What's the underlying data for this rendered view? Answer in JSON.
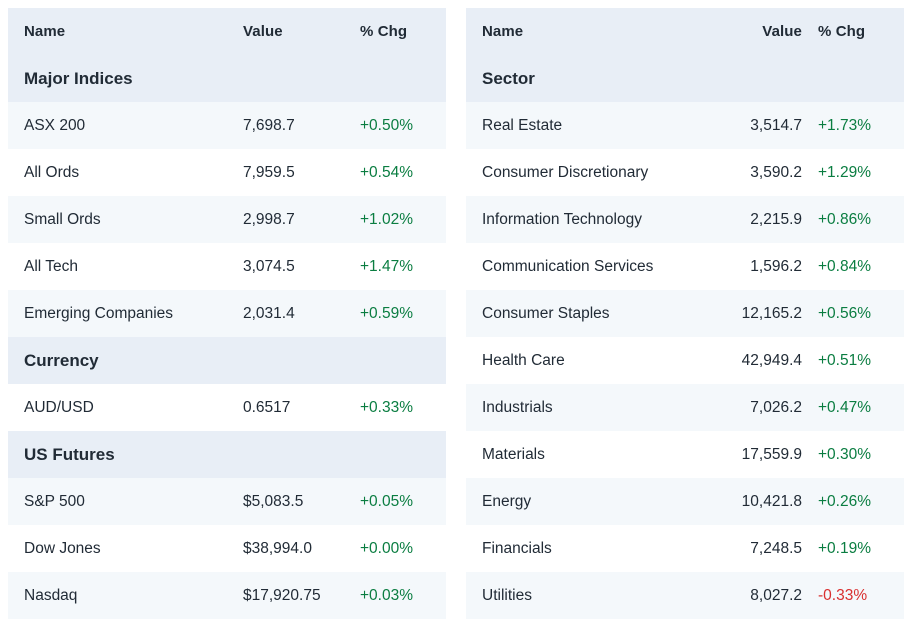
{
  "columns": {
    "name": "Name",
    "value": "Value",
    "chg": "% Chg"
  },
  "colors": {
    "text": "#212b36",
    "header_bg": "#e8eef6",
    "row_alt_bg": "#f4f8fb",
    "positive": "#0a7d41",
    "negative": "#d92f2f"
  },
  "tables": [
    {
      "id": "markets",
      "sections": [
        {
          "title": "Major Indices",
          "rows": [
            {
              "name": "ASX 200",
              "value": "7,698.7",
              "chg": "+0.50%",
              "direction": "up"
            },
            {
              "name": "All Ords",
              "value": "7,959.5",
              "chg": "+0.54%",
              "direction": "up"
            },
            {
              "name": "Small Ords",
              "value": "2,998.7",
              "chg": "+1.02%",
              "direction": "up"
            },
            {
              "name": "All Tech",
              "value": "3,074.5",
              "chg": "+1.47%",
              "direction": "up"
            },
            {
              "name": "Emerging Companies",
              "value": "2,031.4",
              "chg": "+0.59%",
              "direction": "up"
            }
          ]
        },
        {
          "title": "Currency",
          "rows": [
            {
              "name": "AUD/USD",
              "value": "0.6517",
              "chg": "+0.33%",
              "direction": "up"
            }
          ]
        },
        {
          "title": "US Futures",
          "rows": [
            {
              "name": "S&P 500",
              "value": "$5,083.5",
              "chg": "+0.05%",
              "direction": "up"
            },
            {
              "name": "Dow Jones",
              "value": "$38,994.0",
              "chg": "+0.00%",
              "direction": "up"
            },
            {
              "name": "Nasdaq",
              "value": "$17,920.75",
              "chg": "+0.03%",
              "direction": "up"
            }
          ]
        }
      ]
    },
    {
      "id": "sectors",
      "sections": [
        {
          "title": "Sector",
          "rows": [
            {
              "name": "Real Estate",
              "value": "3,514.7",
              "chg": "+1.73%",
              "direction": "up"
            },
            {
              "name": "Consumer Discretionary",
              "value": "3,590.2",
              "chg": "+1.29%",
              "direction": "up"
            },
            {
              "name": "Information Technology",
              "value": "2,215.9",
              "chg": "+0.86%",
              "direction": "up"
            },
            {
              "name": "Communication Services",
              "value": "1,596.2",
              "chg": "+0.84%",
              "direction": "up"
            },
            {
              "name": "Consumer Staples",
              "value": "12,165.2",
              "chg": "+0.56%",
              "direction": "up"
            },
            {
              "name": "Health Care",
              "value": "42,949.4",
              "chg": "+0.51%",
              "direction": "up"
            },
            {
              "name": "Industrials",
              "value": "7,026.2",
              "chg": "+0.47%",
              "direction": "up"
            },
            {
              "name": "Materials",
              "value": "17,559.9",
              "chg": "+0.30%",
              "direction": "up"
            },
            {
              "name": "Energy",
              "value": "10,421.8",
              "chg": "+0.26%",
              "direction": "up"
            },
            {
              "name": "Financials",
              "value": "7,248.5",
              "chg": "+0.19%",
              "direction": "up"
            },
            {
              "name": "Utilities",
              "value": "8,027.2",
              "chg": "-0.33%",
              "direction": "down"
            }
          ]
        }
      ]
    }
  ]
}
